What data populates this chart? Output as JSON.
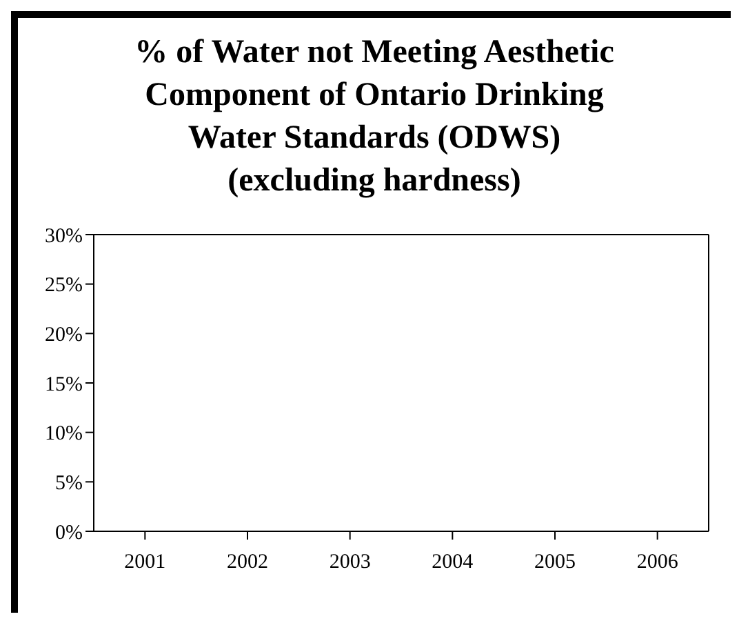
{
  "chart_data": {
    "type": "bar",
    "title": "% of Water not Meeting Aesthetic Component of Ontario Drinking Water Standards (ODWS) (excluding hardness)",
    "categories": [
      "2001",
      "2002",
      "2003",
      "2004",
      "2005",
      "2006"
    ],
    "values": [
      0,
      0,
      0,
      0,
      0,
      0
    ],
    "ylim": [
      0,
      30
    ],
    "yticks": [
      {
        "value": 0,
        "label": "0%"
      },
      {
        "value": 5,
        "label": "5%"
      },
      {
        "value": 10,
        "label": "10%"
      },
      {
        "value": 15,
        "label": "15%"
      },
      {
        "value": 20,
        "label": "20%"
      },
      {
        "value": 25,
        "label": "25%"
      },
      {
        "value": 30,
        "label": "30%"
      }
    ],
    "grid": false,
    "legend": false
  }
}
